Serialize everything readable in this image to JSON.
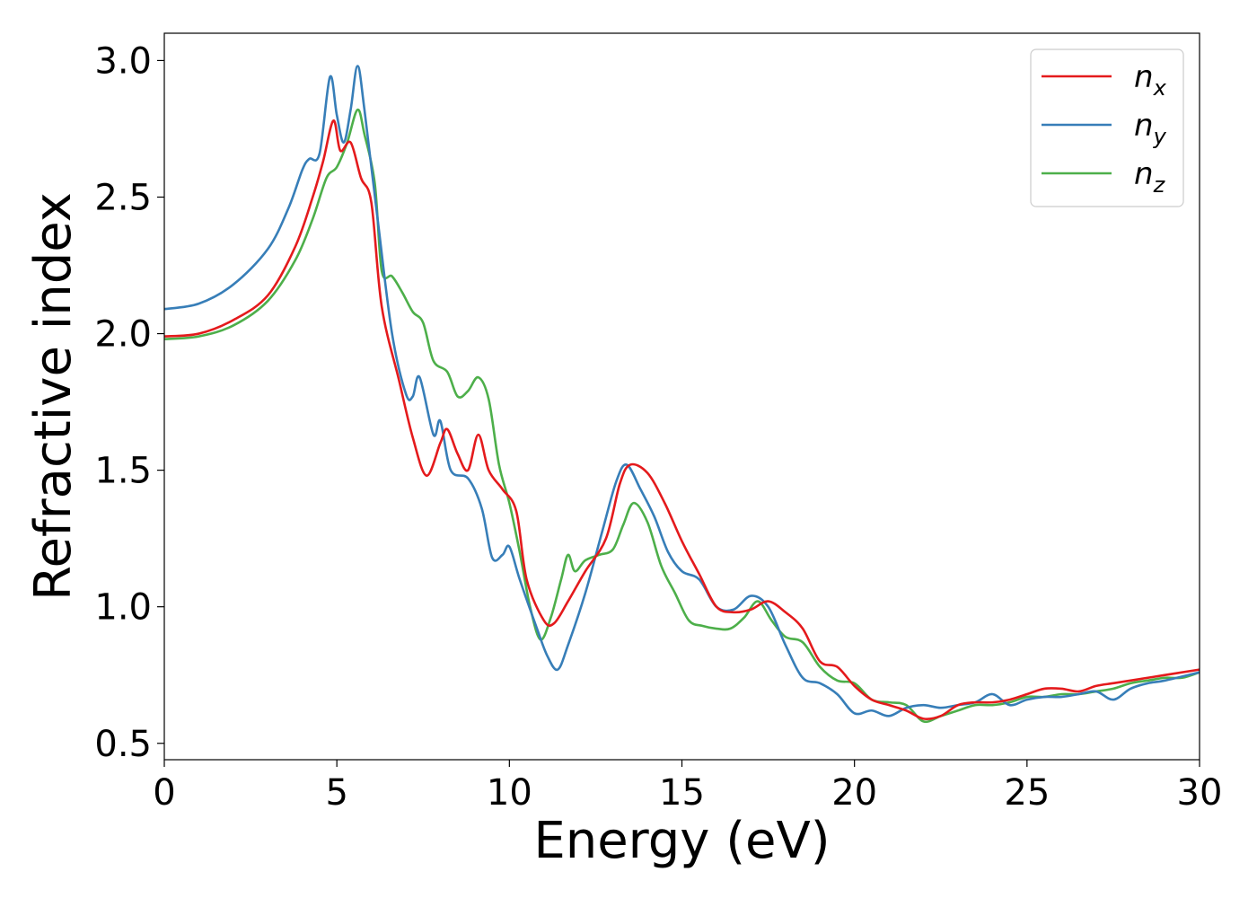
{
  "chart_data": {
    "type": "line",
    "title": "",
    "xlabel": "Energy (eV)",
    "ylabel": "Refractive index",
    "xlim": [
      0,
      30
    ],
    "ylim": [
      0.44,
      3.1
    ],
    "xticks": [
      "0",
      "5",
      "10",
      "15",
      "20",
      "25",
      "30"
    ],
    "yticks": [
      "0.5",
      "1.0",
      "1.5",
      "2.0",
      "2.5",
      "3.0"
    ],
    "grid": false,
    "legend_position": "top-right",
    "series": [
      {
        "name": "n",
        "subscript": "x",
        "color": "#e41a1c",
        "points": [
          [
            0,
            1.99
          ],
          [
            1,
            2.0
          ],
          [
            2,
            2.05
          ],
          [
            3,
            2.14
          ],
          [
            3.8,
            2.32
          ],
          [
            4.3,
            2.5
          ],
          [
            4.6,
            2.63
          ],
          [
            4.9,
            2.78
          ],
          [
            5.1,
            2.67
          ],
          [
            5.4,
            2.7
          ],
          [
            5.7,
            2.57
          ],
          [
            6.0,
            2.48
          ],
          [
            6.3,
            2.1
          ],
          [
            6.8,
            1.83
          ],
          [
            7.2,
            1.62
          ],
          [
            7.6,
            1.48
          ],
          [
            8.0,
            1.6
          ],
          [
            8.2,
            1.65
          ],
          [
            8.5,
            1.56
          ],
          [
            8.8,
            1.5
          ],
          [
            9.1,
            1.63
          ],
          [
            9.4,
            1.5
          ],
          [
            9.8,
            1.43
          ],
          [
            10.2,
            1.35
          ],
          [
            10.5,
            1.1
          ],
          [
            11.0,
            0.95
          ],
          [
            11.3,
            0.94
          ],
          [
            11.7,
            1.02
          ],
          [
            12.2,
            1.13
          ],
          [
            12.8,
            1.25
          ],
          [
            13.2,
            1.45
          ],
          [
            13.5,
            1.52
          ],
          [
            14.0,
            1.49
          ],
          [
            14.5,
            1.38
          ],
          [
            15.0,
            1.24
          ],
          [
            15.5,
            1.12
          ],
          [
            16.0,
            1.0
          ],
          [
            16.5,
            0.98
          ],
          [
            17.0,
            0.99
          ],
          [
            17.5,
            1.02
          ],
          [
            18.0,
            0.98
          ],
          [
            18.5,
            0.92
          ],
          [
            19.0,
            0.8
          ],
          [
            19.5,
            0.78
          ],
          [
            20.0,
            0.71
          ],
          [
            20.5,
            0.66
          ],
          [
            21.0,
            0.64
          ],
          [
            21.5,
            0.62
          ],
          [
            22.0,
            0.59
          ],
          [
            22.5,
            0.6
          ],
          [
            23.0,
            0.64
          ],
          [
            23.5,
            0.65
          ],
          [
            24.0,
            0.65
          ],
          [
            24.5,
            0.66
          ],
          [
            25.0,
            0.68
          ],
          [
            25.5,
            0.7
          ],
          [
            26.0,
            0.7
          ],
          [
            26.5,
            0.69
          ],
          [
            27.0,
            0.71
          ],
          [
            27.5,
            0.72
          ],
          [
            28.0,
            0.73
          ],
          [
            29.0,
            0.75
          ],
          [
            30.0,
            0.77
          ]
        ]
      },
      {
        "name": "n",
        "subscript": "y",
        "color": "#377eb8",
        "points": [
          [
            0,
            2.09
          ],
          [
            1,
            2.11
          ],
          [
            2,
            2.18
          ],
          [
            3,
            2.31
          ],
          [
            3.6,
            2.46
          ],
          [
            4.0,
            2.6
          ],
          [
            4.2,
            2.64
          ],
          [
            4.5,
            2.66
          ],
          [
            4.8,
            2.94
          ],
          [
            5.0,
            2.8
          ],
          [
            5.2,
            2.7
          ],
          [
            5.4,
            2.82
          ],
          [
            5.6,
            2.98
          ],
          [
            5.8,
            2.82
          ],
          [
            6.2,
            2.4
          ],
          [
            6.6,
            2.0
          ],
          [
            7.0,
            1.78
          ],
          [
            7.2,
            1.77
          ],
          [
            7.4,
            1.84
          ],
          [
            7.8,
            1.63
          ],
          [
            8.0,
            1.68
          ],
          [
            8.3,
            1.5
          ],
          [
            8.8,
            1.47
          ],
          [
            9.2,
            1.36
          ],
          [
            9.5,
            1.18
          ],
          [
            9.8,
            1.19
          ],
          [
            10.0,
            1.22
          ],
          [
            10.3,
            1.1
          ],
          [
            10.8,
            0.92
          ],
          [
            11.1,
            0.82
          ],
          [
            11.4,
            0.77
          ],
          [
            11.7,
            0.86
          ],
          [
            12.2,
            1.05
          ],
          [
            12.7,
            1.28
          ],
          [
            13.1,
            1.46
          ],
          [
            13.4,
            1.52
          ],
          [
            13.8,
            1.43
          ],
          [
            14.2,
            1.33
          ],
          [
            14.6,
            1.2
          ],
          [
            15.0,
            1.13
          ],
          [
            15.5,
            1.1
          ],
          [
            16.0,
            1.0
          ],
          [
            16.5,
            0.99
          ],
          [
            17.0,
            1.04
          ],
          [
            17.5,
            1.0
          ],
          [
            18.0,
            0.86
          ],
          [
            18.5,
            0.74
          ],
          [
            19.0,
            0.72
          ],
          [
            19.5,
            0.68
          ],
          [
            20.0,
            0.61
          ],
          [
            20.5,
            0.62
          ],
          [
            21.0,
            0.6
          ],
          [
            21.5,
            0.63
          ],
          [
            22.0,
            0.64
          ],
          [
            22.5,
            0.63
          ],
          [
            23.0,
            0.64
          ],
          [
            23.5,
            0.65
          ],
          [
            24.0,
            0.68
          ],
          [
            24.5,
            0.64
          ],
          [
            25.0,
            0.66
          ],
          [
            25.5,
            0.67
          ],
          [
            26.0,
            0.67
          ],
          [
            26.5,
            0.68
          ],
          [
            27.0,
            0.69
          ],
          [
            27.5,
            0.66
          ],
          [
            28.0,
            0.7
          ],
          [
            28.5,
            0.72
          ],
          [
            29.0,
            0.73
          ],
          [
            30.0,
            0.76
          ]
        ]
      },
      {
        "name": "n",
        "subscript": "z",
        "color": "#4daf4a",
        "points": [
          [
            0,
            1.98
          ],
          [
            1,
            1.99
          ],
          [
            2,
            2.03
          ],
          [
            3,
            2.12
          ],
          [
            3.8,
            2.27
          ],
          [
            4.3,
            2.42
          ],
          [
            4.7,
            2.57
          ],
          [
            5.0,
            2.61
          ],
          [
            5.3,
            2.7
          ],
          [
            5.6,
            2.82
          ],
          [
            5.8,
            2.73
          ],
          [
            6.1,
            2.55
          ],
          [
            6.3,
            2.23
          ],
          [
            6.6,
            2.21
          ],
          [
            6.9,
            2.15
          ],
          [
            7.2,
            2.08
          ],
          [
            7.5,
            2.04
          ],
          [
            7.8,
            1.9
          ],
          [
            8.2,
            1.86
          ],
          [
            8.5,
            1.77
          ],
          [
            8.8,
            1.79
          ],
          [
            9.1,
            1.84
          ],
          [
            9.4,
            1.76
          ],
          [
            9.7,
            1.52
          ],
          [
            10.0,
            1.38
          ],
          [
            10.3,
            1.2
          ],
          [
            10.6,
            1.0
          ],
          [
            10.9,
            0.88
          ],
          [
            11.2,
            0.96
          ],
          [
            11.5,
            1.1
          ],
          [
            11.7,
            1.19
          ],
          [
            11.9,
            1.13
          ],
          [
            12.2,
            1.17
          ],
          [
            12.6,
            1.19
          ],
          [
            13.0,
            1.21
          ],
          [
            13.3,
            1.3
          ],
          [
            13.6,
            1.38
          ],
          [
            14.0,
            1.31
          ],
          [
            14.4,
            1.15
          ],
          [
            14.8,
            1.05
          ],
          [
            15.2,
            0.95
          ],
          [
            15.6,
            0.93
          ],
          [
            16.0,
            0.92
          ],
          [
            16.4,
            0.92
          ],
          [
            16.8,
            0.96
          ],
          [
            17.2,
            1.02
          ],
          [
            17.6,
            0.95
          ],
          [
            18.0,
            0.89
          ],
          [
            18.5,
            0.87
          ],
          [
            19.0,
            0.78
          ],
          [
            19.5,
            0.73
          ],
          [
            20.0,
            0.72
          ],
          [
            20.5,
            0.66
          ],
          [
            21.0,
            0.65
          ],
          [
            21.5,
            0.64
          ],
          [
            22.0,
            0.58
          ],
          [
            22.5,
            0.6
          ],
          [
            23.0,
            0.62
          ],
          [
            23.5,
            0.64
          ],
          [
            24.0,
            0.64
          ],
          [
            24.5,
            0.65
          ],
          [
            25.0,
            0.67
          ],
          [
            25.5,
            0.67
          ],
          [
            26.0,
            0.68
          ],
          [
            26.5,
            0.68
          ],
          [
            27.0,
            0.69
          ],
          [
            27.5,
            0.7
          ],
          [
            28.0,
            0.72
          ],
          [
            28.5,
            0.73
          ],
          [
            29.0,
            0.74
          ],
          [
            29.5,
            0.74
          ],
          [
            30.0,
            0.76
          ]
        ]
      }
    ]
  }
}
